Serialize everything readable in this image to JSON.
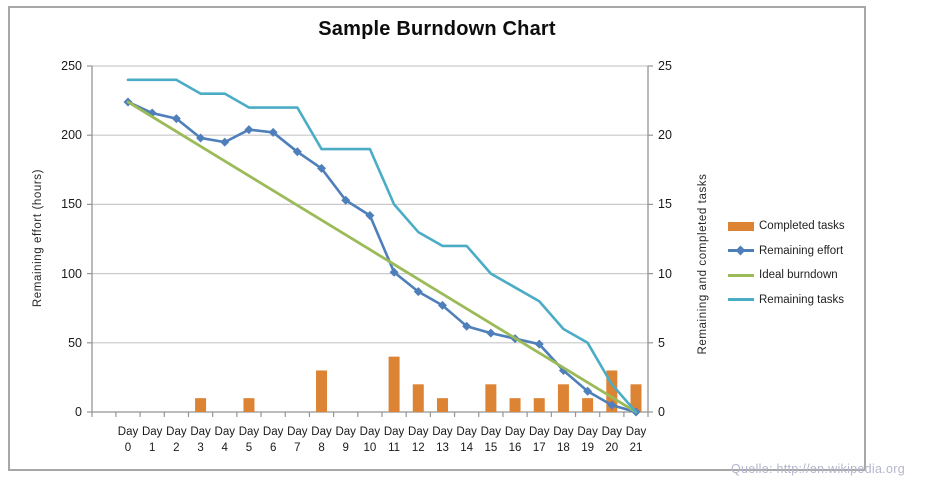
{
  "source": "Quelle: http://en.wikipedia.org",
  "colors": {
    "frame": "#a7a7a7",
    "gridline": "#c9c9c9",
    "axis_line": "#959595",
    "source_text": "#b3b6cc",
    "completed_tasks": "#dc8334",
    "remaining_effort": "#4e7fba",
    "ideal_burndown": "#9bbb59",
    "remaining_tasks": "#4bacc6"
  },
  "chart_data": {
    "type": "combo",
    "title": "Sample Burndown Chart",
    "grid": true,
    "legend_position": "right",
    "categories": [
      "Day 0",
      "Day 1",
      "Day 2",
      "Day 3",
      "Day 4",
      "Day 5",
      "Day 6",
      "Day 7",
      "Day 8",
      "Day 9",
      "Day 10",
      "Day 11",
      "Day 12",
      "Day 13",
      "Day 14",
      "Day 15",
      "Day 16",
      "Day 17",
      "Day 18",
      "Day 19",
      "Day 20",
      "Day 21"
    ],
    "left_axis": {
      "label": "Remaining effort (hours)",
      "min": 0,
      "max": 250,
      "ticks": [
        0,
        50,
        100,
        150,
        200,
        250
      ]
    },
    "right_axis": {
      "label": "Remaining and completed tasks",
      "min": 0,
      "max": 25,
      "ticks": [
        0,
        5,
        10,
        15,
        20,
        25
      ]
    },
    "series": [
      {
        "name": "Completed tasks",
        "type": "bar",
        "axis": "right",
        "color": "#dc8334",
        "values": [
          0,
          0,
          0,
          1,
          0,
          1,
          0,
          0,
          3,
          0,
          0,
          4,
          2,
          1,
          0,
          2,
          1,
          1,
          2,
          1,
          3,
          2
        ]
      },
      {
        "name": "Remaining effort",
        "type": "line",
        "axis": "left",
        "color": "#4e7fba",
        "marker": "diamond",
        "values": [
          224,
          216,
          212,
          198,
          195,
          204,
          202,
          188,
          176,
          153,
          142,
          101,
          87,
          77,
          62,
          57,
          53,
          49,
          30,
          15,
          5,
          0
        ]
      },
      {
        "name": "Ideal burndown",
        "type": "line",
        "axis": "left",
        "color": "#9bbb59",
        "values": [
          224,
          213.33,
          202.67,
          192,
          181.33,
          170.67,
          160,
          149.33,
          138.67,
          128,
          117.33,
          106.67,
          96,
          85.33,
          74.67,
          64,
          53.33,
          42.67,
          32,
          21.33,
          10.67,
          0
        ]
      },
      {
        "name": "Remaining tasks",
        "type": "line",
        "axis": "right",
        "color": "#4bacc6",
        "values": [
          24,
          24,
          24,
          23,
          23,
          22,
          22,
          22,
          19,
          19,
          19,
          15,
          13,
          12,
          12,
          10,
          9,
          8,
          6,
          5,
          2,
          0
        ]
      }
    ]
  }
}
